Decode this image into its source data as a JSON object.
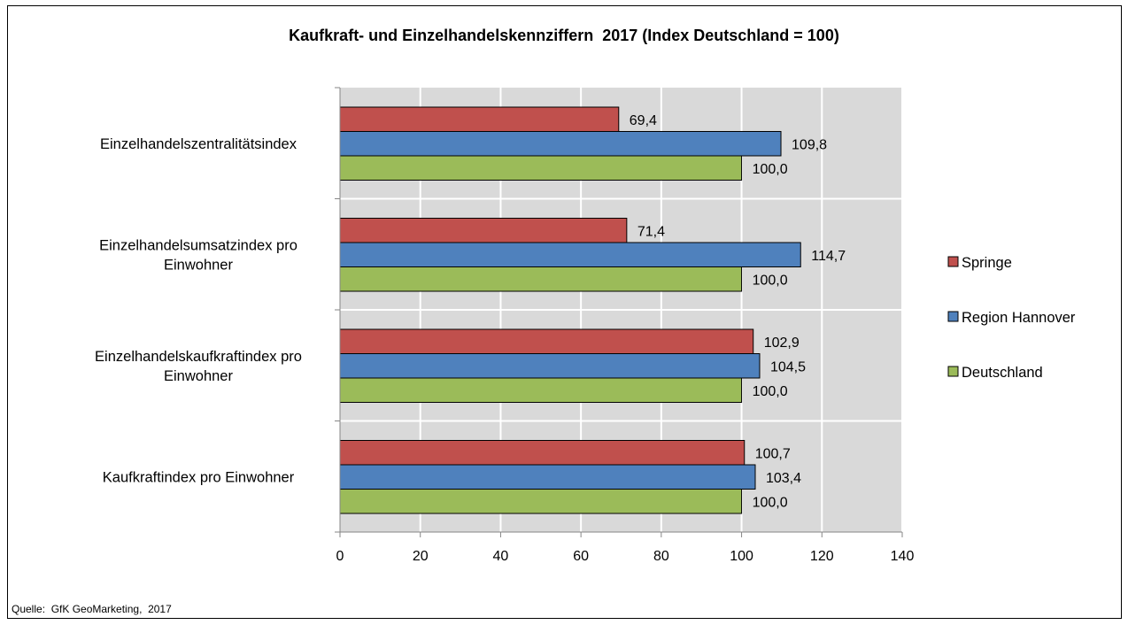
{
  "chart_data": {
    "type": "bar",
    "orientation": "horizontal",
    "title": "Kaufkraft- und Einzelhandelskennziffern  2017 (Index Deutschland = 100)",
    "categories": [
      [
        "Einzelhandelszentralitätsindex"
      ],
      [
        "Einzelhandelsumsatzindex pro",
        "Einwohner"
      ],
      [
        "Einzelhandelskaufkraftindex pro",
        "Einwohner"
      ],
      [
        "Kaufkraftindex pro Einwohner"
      ]
    ],
    "series": [
      {
        "name": "Springe",
        "color": "#c0504d",
        "values": [
          69.4,
          71.4,
          102.9,
          100.7
        ],
        "labels": [
          "69,4",
          "71,4",
          "102,9",
          "100,7"
        ]
      },
      {
        "name": "Region Hannover",
        "color": "#4f81bd",
        "values": [
          109.8,
          114.7,
          104.5,
          103.4
        ],
        "labels": [
          "109,8",
          "114,7",
          "104,5",
          "103,4"
        ]
      },
      {
        "name": "Deutschland",
        "color": "#9bbb59",
        "values": [
          100.0,
          100.0,
          100.0,
          100.0
        ],
        "labels": [
          "100,0",
          "100,0",
          "100,0",
          "100,0"
        ]
      }
    ],
    "xlim": [
      0,
      140
    ],
    "xticks": [
      0,
      20,
      40,
      60,
      80,
      100,
      120,
      140
    ],
    "xlabel": "",
    "ylabel": "",
    "grid": true,
    "legend_position": "right",
    "plot_background": "#d9d9d9"
  },
  "source": "Quelle:  GfK GeoMarketing,  2017"
}
